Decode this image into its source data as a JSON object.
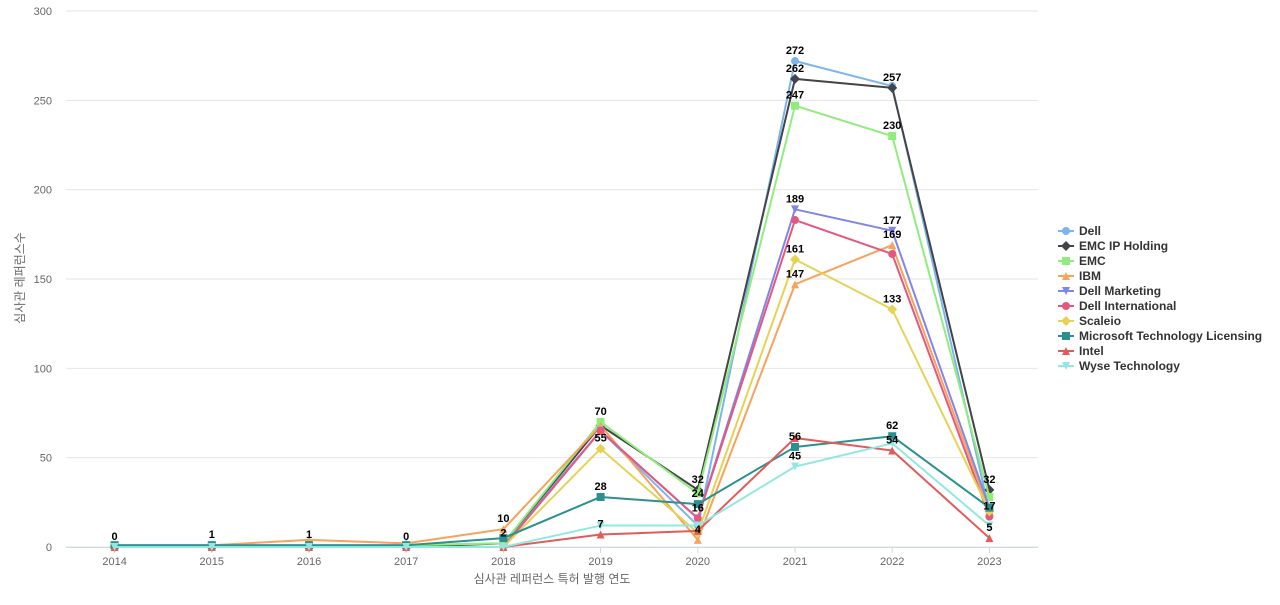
{
  "chart_data": {
    "type": "line",
    "title": "",
    "xlabel": "심사관 레퍼런스 특허 발행 연도",
    "ylabel": "심사관 레퍼런스수",
    "categories": [
      "2014",
      "2015",
      "2016",
      "2017",
      "2018",
      "2019",
      "2020",
      "2021",
      "2022",
      "2023"
    ],
    "ylim": [
      0,
      300
    ],
    "yticks": [
      0,
      50,
      100,
      150,
      200,
      250,
      300
    ],
    "grid": true,
    "legend": "right",
    "series": [
      {
        "name": "Dell",
        "color": "#7cb5ec",
        "marker": "circle",
        "values": [
          1,
          1,
          1,
          1,
          2,
          65,
          12,
          272,
          258,
          20
        ]
      },
      {
        "name": "EMC IP Holding",
        "color": "#434348",
        "marker": "diamond",
        "values": [
          0,
          0,
          0,
          0,
          2,
          68,
          32,
          262,
          257,
          32
        ]
      },
      {
        "name": "EMC",
        "color": "#90ed7d",
        "marker": "square",
        "values": [
          1,
          1,
          1,
          1,
          2,
          70,
          30,
          247,
          230,
          28
        ]
      },
      {
        "name": "IBM",
        "color": "#f7a35c",
        "marker": "triangle",
        "values": [
          0,
          1,
          4,
          2,
          10,
          68,
          4,
          147,
          169,
          20
        ]
      },
      {
        "name": "Dell Marketing",
        "color": "#8085e9",
        "marker": "triangle-down",
        "values": [
          0,
          0,
          0,
          0,
          0,
          65,
          16,
          189,
          177,
          22
        ]
      },
      {
        "name": "Dell International",
        "color": "#e4587f",
        "marker": "circle",
        "values": [
          0,
          0,
          0,
          0,
          0,
          65,
          16,
          183,
          164,
          17
        ]
      },
      {
        "name": "Scaleio",
        "color": "#e4d354",
        "marker": "diamond",
        "values": [
          0,
          0,
          0,
          0,
          0,
          55,
          8,
          161,
          133,
          20
        ]
      },
      {
        "name": "Microsoft Technology Licensing",
        "color": "#2b908f",
        "marker": "square",
        "values": [
          1,
          1,
          1,
          1,
          5,
          28,
          24,
          56,
          62,
          22
        ]
      },
      {
        "name": "Intel",
        "color": "#e15b5b",
        "marker": "triangle",
        "values": [
          0,
          0,
          0,
          0,
          0,
          7,
          9,
          61,
          54,
          5
        ]
      },
      {
        "name": "Wyse Technology",
        "color": "#91e8e1",
        "marker": "triangle-down",
        "values": [
          0,
          0,
          0,
          0,
          0,
          12,
          12,
          45,
          58,
          12
        ]
      }
    ],
    "data_labels": [
      {
        "x": "2014",
        "y": 0,
        "text": "0"
      },
      {
        "x": "2015",
        "y": 1,
        "text": "1"
      },
      {
        "x": "2016",
        "y": 1,
        "text": "1"
      },
      {
        "x": "2017",
        "y": 0,
        "text": "0"
      },
      {
        "x": "2018",
        "y": 10,
        "text": "10"
      },
      {
        "x": "2018",
        "y": 2,
        "text": "2"
      },
      {
        "x": "2019",
        "y": 70,
        "text": "70"
      },
      {
        "x": "2019",
        "y": 55,
        "text": "55"
      },
      {
        "x": "2019",
        "y": 28,
        "text": "28"
      },
      {
        "x": "2019",
        "y": 7,
        "text": "7"
      },
      {
        "x": "2020",
        "y": 32,
        "text": "32"
      },
      {
        "x": "2020",
        "y": 24,
        "text": "24"
      },
      {
        "x": "2020",
        "y": 16,
        "text": "16"
      },
      {
        "x": "2020",
        "y": 4,
        "text": "4"
      },
      {
        "x": "2021",
        "y": 272,
        "text": "272"
      },
      {
        "x": "2021",
        "y": 262,
        "text": "262"
      },
      {
        "x": "2021",
        "y": 247,
        "text": "247"
      },
      {
        "x": "2021",
        "y": 189,
        "text": "189"
      },
      {
        "x": "2021",
        "y": 161,
        "text": "161"
      },
      {
        "x": "2021",
        "y": 147,
        "text": "147"
      },
      {
        "x": "2021",
        "y": 56,
        "text": "56"
      },
      {
        "x": "2021",
        "y": 45,
        "text": "45"
      },
      {
        "x": "2022",
        "y": 257,
        "text": "257"
      },
      {
        "x": "2022",
        "y": 230,
        "text": "230"
      },
      {
        "x": "2022",
        "y": 177,
        "text": "177"
      },
      {
        "x": "2022",
        "y": 169,
        "text": "169"
      },
      {
        "x": "2022",
        "y": 133,
        "text": "133"
      },
      {
        "x": "2022",
        "y": 62,
        "text": "62"
      },
      {
        "x": "2022",
        "y": 54,
        "text": "54"
      },
      {
        "x": "2023",
        "y": 32,
        "text": "32"
      },
      {
        "x": "2023",
        "y": 17,
        "text": "17"
      },
      {
        "x": "2023",
        "y": 5,
        "text": "5"
      }
    ]
  }
}
